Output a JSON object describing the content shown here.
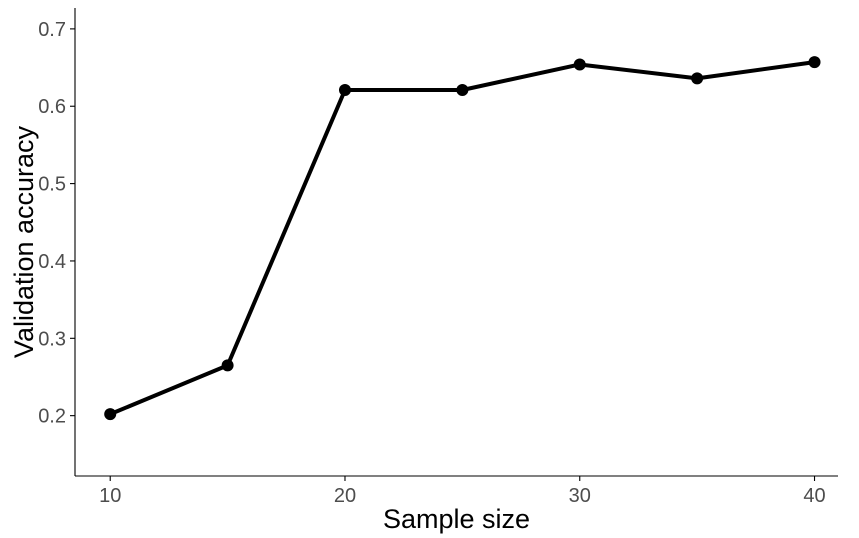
{
  "chart_data": {
    "type": "line",
    "title": "",
    "xlabel": "Sample size",
    "ylabel": "Validation accuracy",
    "xlim": [
      8.5,
      41
    ],
    "ylim": [
      0.122,
      0.727
    ],
    "xticks": [
      10,
      20,
      30,
      40
    ],
    "xtick_labels": [
      "10",
      "20",
      "30",
      "40"
    ],
    "yticks": [
      0.2,
      0.3,
      0.4,
      0.5,
      0.6,
      0.7
    ],
    "ytick_labels": [
      "0.2",
      "0.3",
      "0.4",
      "0.5",
      "0.6",
      "0.7"
    ],
    "grid": false,
    "legend": "none",
    "series": [
      {
        "name": "validation-accuracy",
        "x": [
          10,
          15,
          20,
          25,
          30,
          35,
          40
        ],
        "y": [
          0.202,
          0.265,
          0.621,
          0.621,
          0.654,
          0.636,
          0.657
        ]
      }
    ]
  },
  "colors": {
    "line": "#000000",
    "point": "#000000",
    "axis": "#000000",
    "tick_text": "#4d4d4d",
    "axis_title": "#000000",
    "background": "#ffffff"
  }
}
